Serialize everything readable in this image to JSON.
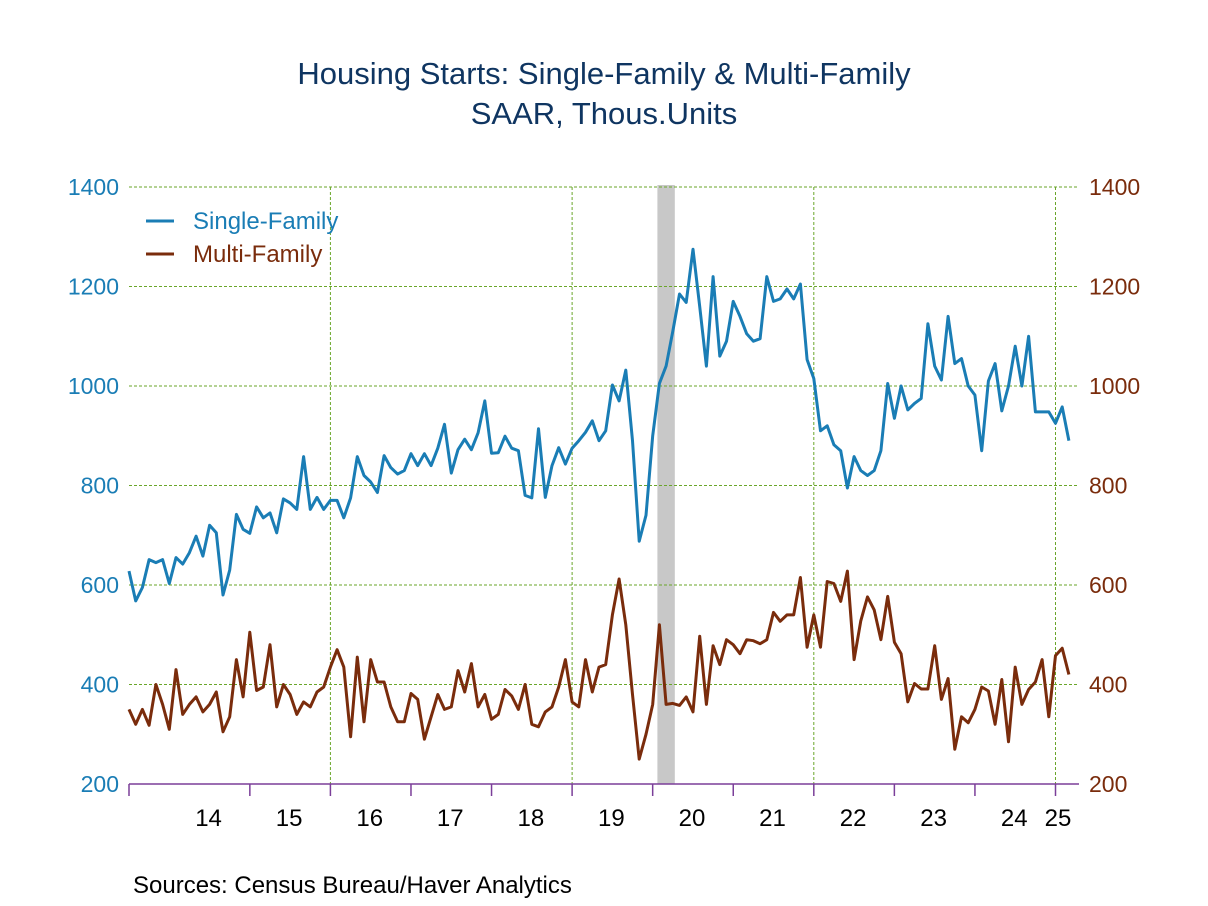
{
  "chart_data": {
    "type": "line",
    "title": "Housing Starts: Single-Family & Multi-Family",
    "subtitle": "SAAR, Thous.Units",
    "source": "Sources:   Census Bureau/Haver Analytics",
    "x_start": "2013-07",
    "frequency": "monthly",
    "x_tick_labels": [
      "14",
      "15",
      "16",
      "17",
      "18",
      "19",
      "20",
      "21",
      "22",
      "23",
      "24",
      "25"
    ],
    "y_left": {
      "min": 200,
      "max": 1400,
      "ticks": [
        200,
        400,
        600,
        800,
        1000,
        1200,
        1400
      ],
      "color": "#1a7db5"
    },
    "y_right": {
      "min": 200,
      "max": 1400,
      "ticks": [
        200,
        400,
        600,
        800,
        1000,
        1200,
        1400
      ],
      "color": "#7a2c0c"
    },
    "grid": true,
    "legend_position": "top-left",
    "recession_shading": {
      "start": "2020-02",
      "end": "2020-04",
      "color": "#c8c8c8"
    },
    "series": [
      {
        "name": "Single-Family",
        "color": "#1a7db5",
        "axis": "left",
        "values": [
          628,
          568,
          595,
          651,
          645,
          651,
          603,
          655,
          642,
          665,
          698,
          658,
          720,
          705,
          580,
          630,
          742,
          712,
          704,
          757,
          735,
          745,
          705,
          773,
          765,
          752,
          858,
          752,
          776,
          752,
          770,
          770,
          735,
          775,
          858,
          820,
          807,
          786,
          860,
          836,
          823,
          830,
          864,
          840,
          864,
          840,
          875,
          923,
          825,
          872,
          893,
          872,
          906,
          970,
          865,
          866,
          899,
          875,
          870,
          780,
          775,
          914,
          776,
          840,
          876,
          843,
          875,
          890,
          907,
          930,
          890,
          910,
          1002,
          970,
          1032,
          890,
          688,
          740,
          900,
          1005,
          1040,
          1110,
          1185,
          1168,
          1275,
          1160,
          1040,
          1220,
          1060,
          1090,
          1170,
          1140,
          1105,
          1090,
          1095,
          1220,
          1170,
          1175,
          1195,
          1175,
          1205,
          1053,
          1015,
          910,
          920,
          882,
          870,
          795,
          858,
          830,
          820,
          830,
          870,
          1005,
          935,
          1000,
          952,
          965,
          975,
          1125,
          1040,
          1012,
          1140,
          1045,
          1055,
          1000,
          982,
          870,
          1010,
          1045,
          950,
          1000,
          1080,
          1000,
          1100,
          948,
          948,
          948,
          925,
          958,
          890
        ]
      },
      {
        "name": "Multi-Family",
        "color": "#7a2c0c",
        "axis": "right",
        "values": [
          350,
          320,
          350,
          318,
          400,
          360,
          310,
          430,
          340,
          360,
          375,
          345,
          360,
          385,
          305,
          335,
          450,
          375,
          505,
          388,
          395,
          480,
          355,
          400,
          380,
          340,
          365,
          355,
          385,
          395,
          435,
          470,
          435,
          295,
          455,
          325,
          450,
          405,
          405,
          355,
          325,
          325,
          382,
          370,
          290,
          335,
          380,
          350,
          355,
          428,
          385,
          442,
          355,
          380,
          330,
          340,
          390,
          377,
          350,
          400,
          320,
          315,
          345,
          355,
          395,
          450,
          365,
          355,
          450,
          385,
          435,
          440,
          540,
          612,
          520,
          380,
          250,
          300,
          360,
          520,
          360,
          362,
          358,
          375,
          345,
          497,
          360,
          478,
          440,
          490,
          480,
          462,
          490,
          488,
          482,
          490,
          545,
          527,
          540,
          540,
          615,
          475,
          540,
          475,
          607,
          603,
          567,
          628,
          450,
          528,
          576,
          550,
          490,
          577,
          485,
          462,
          365,
          402,
          391,
          391,
          478,
          370,
          412,
          270,
          335,
          323,
          350,
          395,
          387,
          320,
          410,
          285,
          435,
          360,
          390,
          405,
          450,
          335,
          458,
          473,
          420
        ]
      }
    ]
  }
}
